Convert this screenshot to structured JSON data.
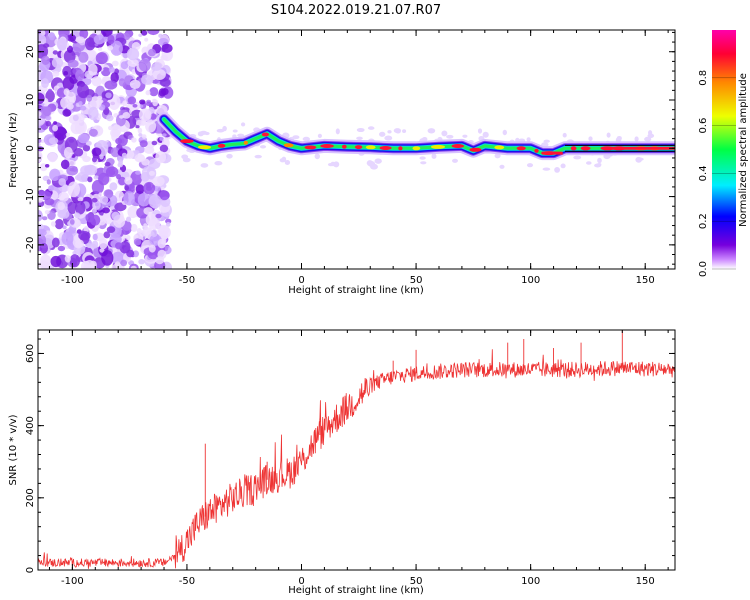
{
  "title": "S104.2022.019.21.07.R07",
  "chart_data": [
    {
      "type": "heatmap",
      "name": "spectrogram",
      "xlabel": "Height of straight line (km)",
      "ylabel": "Frequency (Hz)",
      "xlim": [
        -115,
        163
      ],
      "ylim": [
        -25,
        24.5
      ],
      "xticks": [
        -100,
        -50,
        0,
        50,
        100,
        150
      ],
      "xtick_labels": [
        "-100",
        "-50",
        "0",
        "50",
        "100",
        "150"
      ],
      "yticks": [
        -20,
        -10,
        0,
        10,
        20
      ],
      "ytick_labels": [
        "-20",
        "-10",
        "0",
        "10",
        "20"
      ],
      "noise_region_x": [
        -115,
        -58
      ],
      "ridge": {
        "x": [
          -60,
          -55,
          -50,
          -45,
          -40,
          -35,
          -30,
          -25,
          -20,
          -15,
          -10,
          -5,
          0,
          10,
          20,
          30,
          40,
          50,
          60,
          70,
          75,
          80,
          90,
          100,
          105,
          110,
          115,
          130,
          140,
          150,
          163
        ],
        "y": [
          6,
          3.5,
          1.5,
          0.5,
          0,
          0.5,
          0.8,
          1,
          2,
          3,
          1.5,
          0.5,
          0,
          0.5,
          0.3,
          0.2,
          0,
          0,
          0.3,
          0.5,
          -0.5,
          0.5,
          0,
          0,
          -1,
          -1,
          0,
          0,
          0,
          0,
          0
        ]
      },
      "colorbar": {
        "label": "Normalized spectral amplitude",
        "range": [
          0,
          1
        ],
        "ticks": [
          0.0,
          0.2,
          0.4,
          0.6,
          0.8
        ],
        "tick_labels": [
          "0.0",
          "0.2",
          "0.4",
          "0.6",
          "0.8"
        ],
        "colors": [
          "#ffffff",
          "#cc88ff",
          "#7700dd",
          "#0000ff",
          "#00eeff",
          "#00ff44",
          "#eeff00",
          "#ff8800",
          "#ff0033",
          "#ff00aa"
        ]
      }
    },
    {
      "type": "line",
      "name": "snr",
      "xlabel": "Height of straight line (km)",
      "ylabel": "SNR (10 * v/v)",
      "xlim": [
        -115,
        163
      ],
      "ylim": [
        0,
        665
      ],
      "xticks": [
        -100,
        -50,
        0,
        50,
        100,
        150
      ],
      "xtick_labels": [
        "-100",
        "-50",
        "0",
        "50",
        "100",
        "150"
      ],
      "yticks": [
        0,
        200,
        400,
        600
      ],
      "ytick_labels": [
        "0",
        "200",
        "400",
        "600"
      ],
      "color": "#ee3333",
      "trend": {
        "x": [
          -115,
          -60,
          -55,
          -50,
          -45,
          -40,
          -35,
          -30,
          -25,
          -20,
          -15,
          -10,
          -5,
          0,
          5,
          10,
          15,
          20,
          25,
          30,
          35,
          40,
          50,
          60,
          70,
          80,
          100,
          120,
          140,
          163
        ],
        "y": [
          20,
          20,
          40,
          80,
          130,
          160,
          180,
          200,
          215,
          230,
          250,
          260,
          270,
          300,
          350,
          390,
          420,
          450,
          480,
          510,
          525,
          535,
          545,
          550,
          555,
          555,
          555,
          555,
          560,
          555
        ]
      },
      "spikes": {
        "x": [
          -42,
          -15,
          8,
          40,
          50,
          90,
          97,
          110,
          122,
          140
        ],
        "y": [
          350,
          300,
          420,
          580,
          610,
          630,
          640,
          615,
          630,
          665
        ]
      }
    }
  ]
}
